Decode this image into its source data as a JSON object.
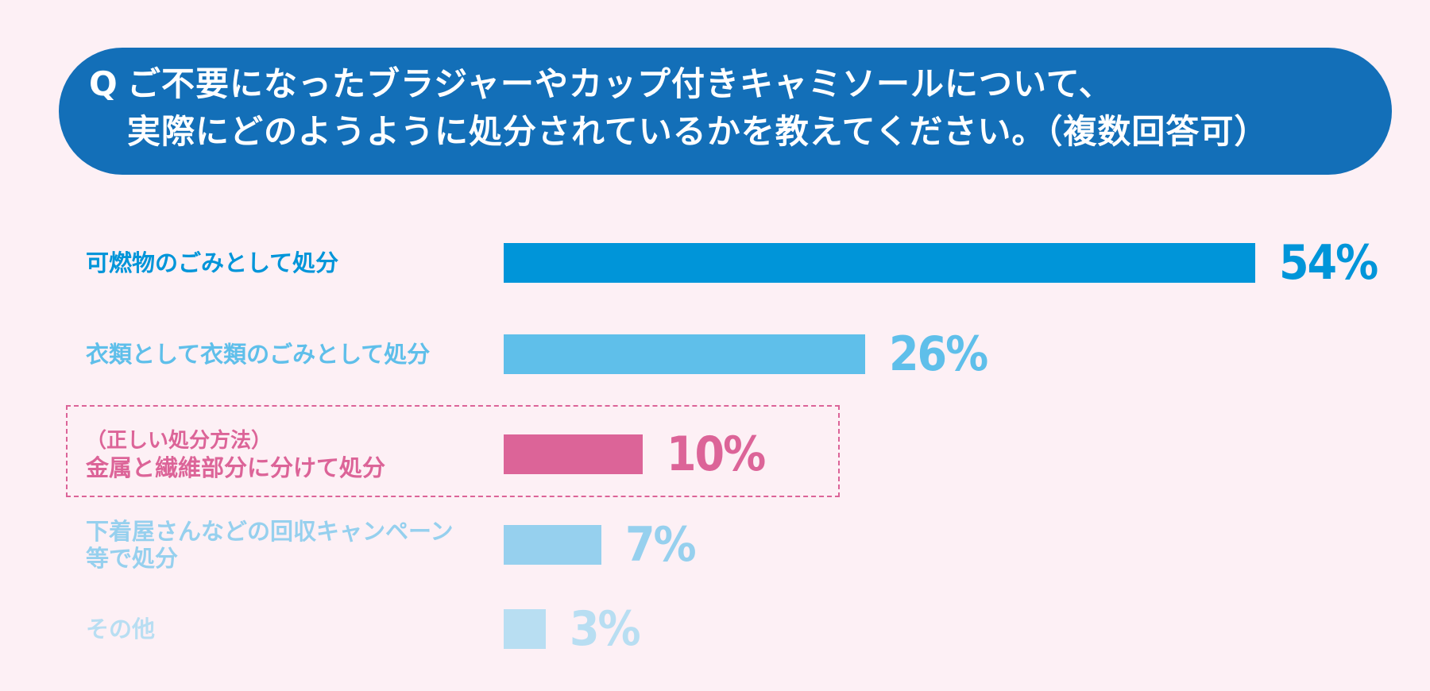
{
  "question": {
    "mark": "Q",
    "line1": "ご不要になったブラジャーやカップ付きキャミソールについて、",
    "line2": "実際にどのようように処分されているかを教えてください。（複数回答可）"
  },
  "chart_data": {
    "type": "bar",
    "orientation": "horizontal",
    "title": "Q ご不要になったブラジャーやカップ付きキャミソールについて、実際にどのようように処分されているかを教えてください。（複数回答可）",
    "unit": "%",
    "categories": [
      "可燃物のごみとして処分",
      "衣類として衣類のごみとして処分",
      "金属と繊維部分に分けて処分",
      "下着屋さんなどの回収キャンペーン等で処分",
      "その他"
    ],
    "values": [
      54,
      26,
      10,
      7,
      3
    ],
    "value_labels": [
      "54%",
      "26%",
      "10%",
      "7%",
      "3%"
    ],
    "colors": [
      "#0095d9",
      "#5fbfea",
      "#dc6498",
      "#96d0ee",
      "#b8def2"
    ],
    "label_lines": [
      [
        "可燃物のごみとして処分"
      ],
      [
        "衣類として衣類のごみとして処分"
      ],
      [
        "金属と繊維部分に分けて処分"
      ],
      [
        "下着屋さんなどの回収キャンペーン",
        "等で処分"
      ],
      [
        "その他"
      ]
    ],
    "highlight": {
      "index": 2,
      "note": "（正しい処分方法）"
    },
    "xlim": [
      0,
      54
    ],
    "grid": false,
    "legend": "none"
  }
}
